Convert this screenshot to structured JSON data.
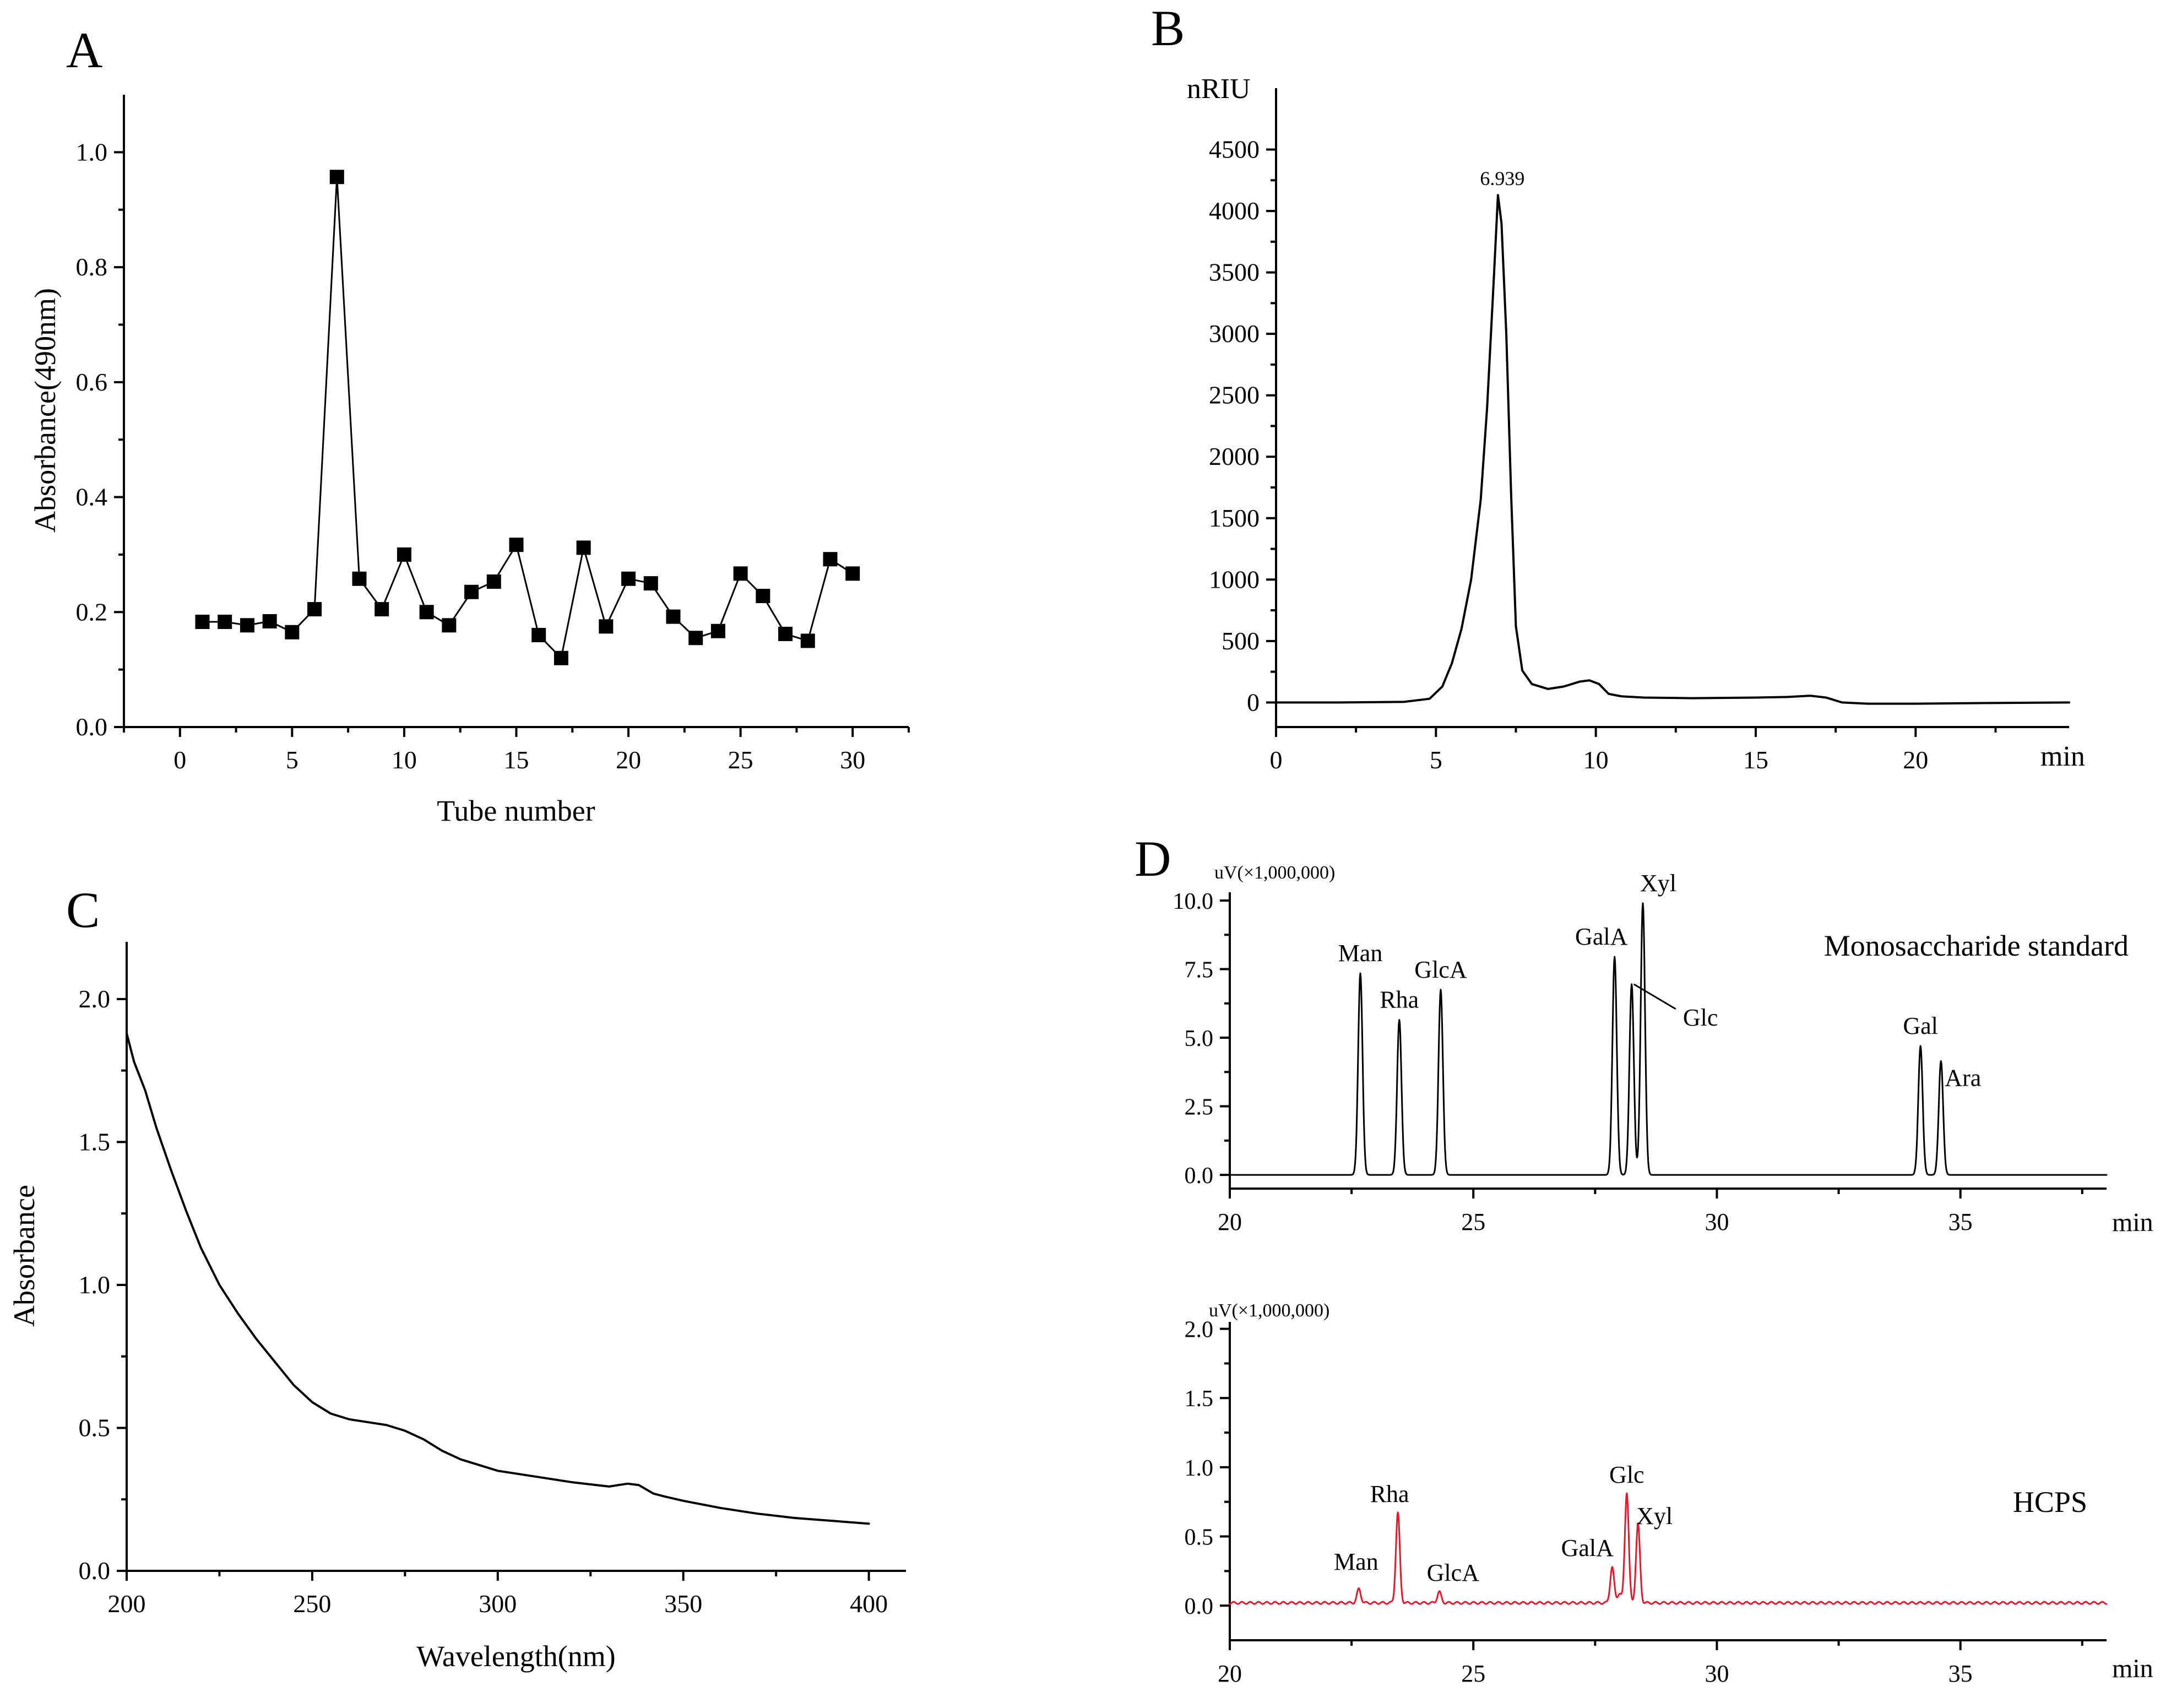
{
  "chart_data": [
    {
      "panel": "A",
      "type": "line",
      "panel_label": "A",
      "xlabel": "Tube number",
      "ylabel": "Absorbance(490nm)",
      "xlim": [
        -2.5,
        32.5
      ],
      "ylim": [
        0,
        1.1
      ],
      "xticks": [
        0,
        5,
        10,
        15,
        20,
        25,
        30
      ],
      "yticks": [
        0.0,
        0.2,
        0.4,
        0.6,
        0.8,
        1.0
      ],
      "ytick_labels": [
        "0.0",
        "0.2",
        "0.4",
        "0.6",
        "0.8",
        "1.0"
      ],
      "marker": "square",
      "x": [
        1,
        2,
        3,
        4,
        5,
        6,
        7,
        8,
        9,
        10,
        11,
        12,
        13,
        14,
        15,
        16,
        17,
        18,
        19,
        20,
        21,
        22,
        23,
        24,
        25,
        26,
        27,
        28,
        29,
        30
      ],
      "values": [
        0.183,
        0.183,
        0.177,
        0.184,
        0.165,
        0.205,
        0.957,
        0.258,
        0.205,
        0.3,
        0.2,
        0.177,
        0.235,
        0.253,
        0.317,
        0.16,
        0.12,
        0.312,
        0.175,
        0.258,
        0.25,
        0.192,
        0.155,
        0.167,
        0.267,
        0.228,
        0.162,
        0.15,
        0.292,
        0.267
      ]
    },
    {
      "panel": "B",
      "type": "line",
      "panel_label": "B",
      "ylabel": "nRIU",
      "xlabel": "min",
      "xlim": [
        0,
        24.8
      ],
      "ylim": [
        -200,
        5000
      ],
      "xticks": [
        0,
        5,
        10,
        15,
        20
      ],
      "yticks": [
        0,
        500,
        1000,
        1500,
        2000,
        2500,
        3000,
        3500,
        4000,
        4500
      ],
      "peak_label": "6.939",
      "peak": {
        "x": 6.939,
        "y": 4130
      },
      "x": [
        0,
        2,
        4,
        4.8,
        5.2,
        5.5,
        5.8,
        6.1,
        6.4,
        6.6,
        6.8,
        6.939,
        7.05,
        7.2,
        7.35,
        7.5,
        7.7,
        8,
        8.5,
        9,
        9.5,
        9.8,
        10.1,
        10.4,
        10.8,
        11.5,
        13,
        15,
        16,
        16.7,
        17.2,
        17.7,
        18.5,
        20,
        22,
        24.8
      ],
      "values": [
        0,
        0,
        5,
        30,
        130,
        320,
        600,
        1000,
        1650,
        2400,
        3400,
        4130,
        3900,
        3000,
        1700,
        620,
        260,
        150,
        110,
        130,
        170,
        180,
        150,
        70,
        50,
        40,
        35,
        40,
        45,
        55,
        40,
        0,
        -10,
        -10,
        -5,
        0
      ]
    },
    {
      "panel": "C",
      "type": "line",
      "panel_label": "C",
      "xlabel": "Wavelength(nm)",
      "ylabel": "Absorbance",
      "xlim": [
        200,
        410
      ],
      "ylim": [
        0,
        2.2
      ],
      "xticks": [
        200,
        250,
        300,
        350,
        400
      ],
      "yticks": [
        0.0,
        0.5,
        1.0,
        1.5,
        2.0
      ],
      "ytick_labels": [
        "0.0",
        "0.5",
        "1.0",
        "1.5",
        "2.0"
      ],
      "x": [
        200,
        202,
        205,
        208,
        212,
        216,
        220,
        225,
        230,
        235,
        240,
        245,
        250,
        255,
        260,
        265,
        270,
        275,
        280,
        285,
        290,
        295,
        300,
        310,
        320,
        330,
        335,
        338,
        340,
        342,
        345,
        350,
        360,
        370,
        380,
        390,
        400
      ],
      "values": [
        1.88,
        1.78,
        1.68,
        1.55,
        1.4,
        1.26,
        1.13,
        1.0,
        0.9,
        0.81,
        0.73,
        0.65,
        0.59,
        0.55,
        0.53,
        0.52,
        0.51,
        0.49,
        0.46,
        0.42,
        0.39,
        0.37,
        0.35,
        0.33,
        0.31,
        0.295,
        0.305,
        0.3,
        0.285,
        0.27,
        0.26,
        0.245,
        0.22,
        0.2,
        0.185,
        0.175,
        0.165
      ]
    },
    {
      "panel": "D-top",
      "type": "line",
      "panel_label": "D",
      "title": "Monosaccharide standard",
      "ylabel": "uV(×1,000,000)",
      "xlabel": "min",
      "xlim": [
        20,
        38
      ],
      "ylim": [
        -0.5,
        10.3
      ],
      "xticks": [
        20,
        25,
        30,
        35
      ],
      "yticks": [
        0.0,
        2.5,
        5.0,
        7.5,
        10.0
      ],
      "ytick_labels": [
        "0.0",
        "2.5",
        "5.0",
        "7.5",
        "10.0"
      ],
      "color": "#000000",
      "baseline": 0.0,
      "peaks": [
        {
          "label": "Man",
          "rt": 22.68,
          "height": 7.35
        },
        {
          "label": "Rha",
          "rt": 23.48,
          "height": 5.65
        },
        {
          "label": "GlcA",
          "rt": 24.33,
          "height": 6.75
        },
        {
          "label": "GalA",
          "rt": 27.9,
          "height": 7.95
        },
        {
          "label": "Glc",
          "rt": 28.25,
          "height": 6.95
        },
        {
          "label": "Xyl",
          "rt": 28.48,
          "height": 9.9
        },
        {
          "label": "Gal",
          "rt": 34.18,
          "height": 4.7
        },
        {
          "label": "Ara",
          "rt": 34.6,
          "height": 4.15
        }
      ]
    },
    {
      "panel": "D-bottom",
      "type": "line",
      "title": "HCPS",
      "ylabel": "uV(×1,000,000)",
      "xlabel": "min",
      "xlim": [
        20,
        38
      ],
      "ylim": [
        -0.25,
        2.05
      ],
      "xticks": [
        20,
        25,
        30,
        35
      ],
      "yticks": [
        0.0,
        0.5,
        1.0,
        1.5,
        2.0
      ],
      "ytick_labels": [
        "0.0",
        "0.5",
        "1.0",
        "1.5",
        "2.0"
      ],
      "color": "#e8182c",
      "baseline": 0.02,
      "peaks": [
        {
          "label": "Man",
          "rt": 22.65,
          "height": 0.1
        },
        {
          "label": "Rha",
          "rt": 23.45,
          "height": 0.65
        },
        {
          "label": "GlcA",
          "rt": 24.3,
          "height": 0.08
        },
        {
          "label": "GalA",
          "rt": 27.85,
          "height": 0.26
        },
        {
          "label": "",
          "rt": 28.0,
          "height": 0.07
        },
        {
          "label": "Glc",
          "rt": 28.15,
          "height": 0.8
        },
        {
          "label": "Xyl",
          "rt": 28.38,
          "height": 0.57
        }
      ]
    }
  ]
}
